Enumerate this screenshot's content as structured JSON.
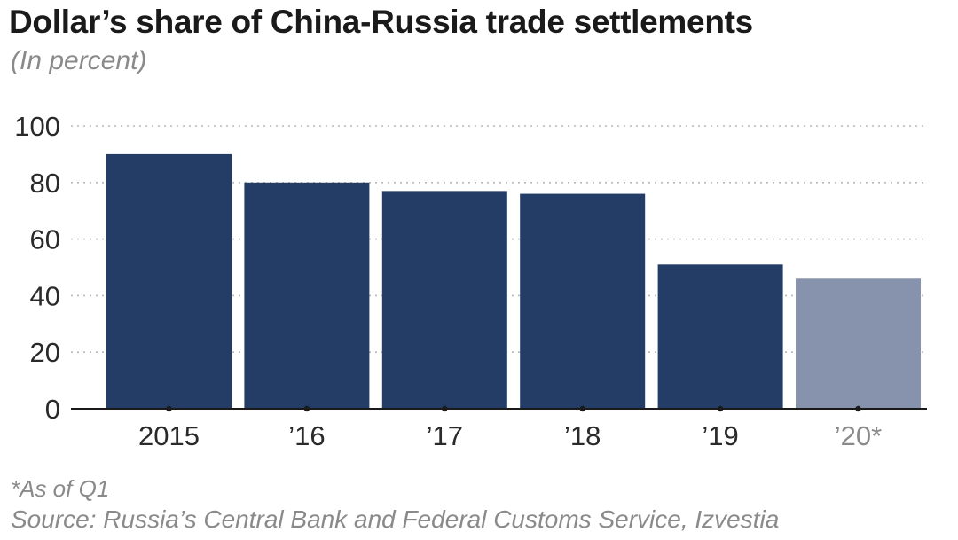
{
  "header": {
    "title": "Dollar’s share of China-Russia trade settlements",
    "subtitle": "(In percent)"
  },
  "footer": {
    "footnote": "*As of Q1",
    "source": "Source: Russia’s Central Bank and Federal Customs Service, Izvestia"
  },
  "colors": {
    "bar": "#233d66",
    "bar_highlight": "#8793ad",
    "grid": "#b8b8b8",
    "axis": "#1a1a1a"
  },
  "chart_data": {
    "type": "bar",
    "title": "Dollar’s share of China-Russia trade settlements",
    "subtitle": "(In percent)",
    "xlabel": "",
    "ylabel": "",
    "categories": [
      "2015",
      "’16",
      "’17",
      "’18",
      "’19",
      "’20*"
    ],
    "values": [
      90,
      80,
      77,
      76,
      51,
      46
    ],
    "ylim": [
      0,
      100
    ],
    "yticks": [
      0,
      20,
      40,
      60,
      80,
      100
    ],
    "grid": true,
    "legend": "none"
  }
}
